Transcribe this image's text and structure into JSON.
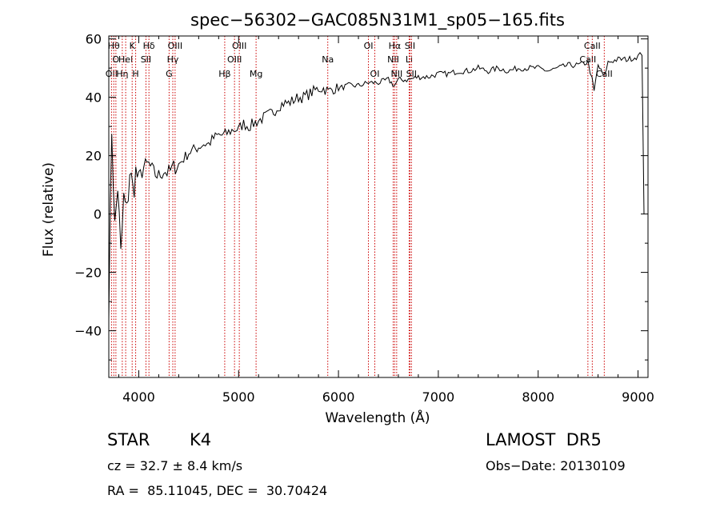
{
  "chart_data": {
    "type": "line",
    "title": "spec−56302−GAC085N31M1_sp05−165.fits",
    "xlabel": "Wavelength (Å)",
    "ylabel": "Flux (relative)",
    "xlim": [
      3700,
      9100
    ],
    "ylim": [
      -56,
      61
    ],
    "xticks": [
      4000,
      5000,
      6000,
      7000,
      8000,
      9000
    ],
    "yticks": [
      -40,
      -20,
      0,
      20,
      40,
      60
    ],
    "ytick_labels": [
      "−40",
      "−20",
      "0",
      "20",
      "40",
      "60"
    ],
    "grid": false,
    "line_color": "#000000",
    "marker_color": "#cc0000",
    "series": [
      {
        "x": [
          3700,
          3730,
          3760,
          3790,
          3820,
          3850,
          3880,
          3910,
          3940,
          3970,
          4000,
          4050,
          4100,
          4150,
          4200,
          4250,
          4300,
          4350,
          4400,
          4450,
          4500,
          4550,
          4600,
          4650,
          4700,
          4750,
          4800,
          4850,
          4900,
          4950,
          5000,
          5050,
          5100,
          5150,
          5200,
          5250,
          5300,
          5350,
          5400,
          5450,
          5500,
          5550,
          5600,
          5650,
          5700,
          5750,
          5800,
          5850,
          5900,
          5950,
          6000,
          6100,
          6200,
          6300,
          6400,
          6500,
          6560,
          6600,
          6700,
          6800,
          6900,
          7000,
          7100,
          7200,
          7300,
          7400,
          7500,
          7600,
          7700,
          7800,
          7900,
          8000,
          8100,
          8200,
          8300,
          8400,
          8500,
          8540,
          8560,
          8600,
          8660,
          8700,
          8800,
          8900,
          9000,
          9040,
          9060
        ],
        "y": [
          -30,
          30,
          -5,
          10,
          -15,
          5,
          0,
          15,
          8,
          14,
          12,
          16,
          17,
          14,
          13,
          15,
          14,
          16,
          17,
          19,
          21,
          22,
          23,
          24,
          24,
          26,
          27,
          27,
          28,
          29,
          29,
          31,
          30,
          31,
          32,
          33,
          34,
          35,
          37,
          38,
          38,
          39,
          40,
          40,
          41,
          42,
          43,
          43,
          42,
          43,
          43,
          44,
          44,
          45,
          45,
          46,
          44,
          46,
          46,
          47,
          47,
          48,
          48,
          49,
          49,
          50,
          49,
          50,
          49,
          50,
          50,
          50,
          49,
          50,
          51,
          51,
          52,
          46,
          42,
          51,
          47,
          52,
          53,
          53,
          54,
          55,
          0
        ]
      }
    ],
    "line_markers": [
      {
        "x": 3727,
        "label": "OII",
        "row": 3
      },
      {
        "x": 3750,
        "label": "Hθ",
        "row": 1
      },
      {
        "x": 3771,
        "label": "O",
        "row": 2
      },
      {
        "x": 3835,
        "label": "Hη",
        "row": 3
      },
      {
        "x": 3869,
        "label": "Hel",
        "row": 2
      },
      {
        "x": 3934,
        "label": "K",
        "row": 1
      },
      {
        "x": 3969,
        "label": "H",
        "row": 3
      },
      {
        "x": 4072,
        "label": "SII",
        "row": 2
      },
      {
        "x": 4102,
        "label": "Hδ",
        "row": 1
      },
      {
        "x": 4304,
        "label": "G",
        "row": 3
      },
      {
        "x": 4341,
        "label": "Hγ",
        "row": 2
      },
      {
        "x": 4364,
        "label": "OIII",
        "row": 1
      },
      {
        "x": 4861,
        "label": "Hβ",
        "row": 3
      },
      {
        "x": 4959,
        "label": "OIII",
        "row": 2
      },
      {
        "x": 5007,
        "label": "OIII",
        "row": 1
      },
      {
        "x": 5175,
        "label": "Mg",
        "row": 3
      },
      {
        "x": 5893,
        "label": "Na",
        "row": 2
      },
      {
        "x": 6300,
        "label": "OI",
        "row": 1
      },
      {
        "x": 6364,
        "label": "OI",
        "row": 3
      },
      {
        "x": 6548,
        "label": "NII",
        "row": 2
      },
      {
        "x": 6563,
        "label": "Hα",
        "row": 1
      },
      {
        "x": 6583,
        "label": "NII",
        "row": 3
      },
      {
        "x": 6708,
        "label": "Li",
        "row": 2
      },
      {
        "x": 6716,
        "label": "SII",
        "row": 1
      },
      {
        "x": 6731,
        "label": "SII",
        "row": 3
      },
      {
        "x": 8498,
        "label": "CaII",
        "row": 2
      },
      {
        "x": 8542,
        "label": "CaII",
        "row": 1
      },
      {
        "x": 8662,
        "label": "CaII",
        "row": 3
      }
    ]
  },
  "info": {
    "class": "STAR",
    "subclass": "K4",
    "survey": "LAMOST  DR5",
    "cz": "cz = 32.7 ± 8.4 km/s",
    "obs_date": "Obs−Date: 20130109",
    "radec": "RA =  85.11045, DEC =  30.70424"
  }
}
